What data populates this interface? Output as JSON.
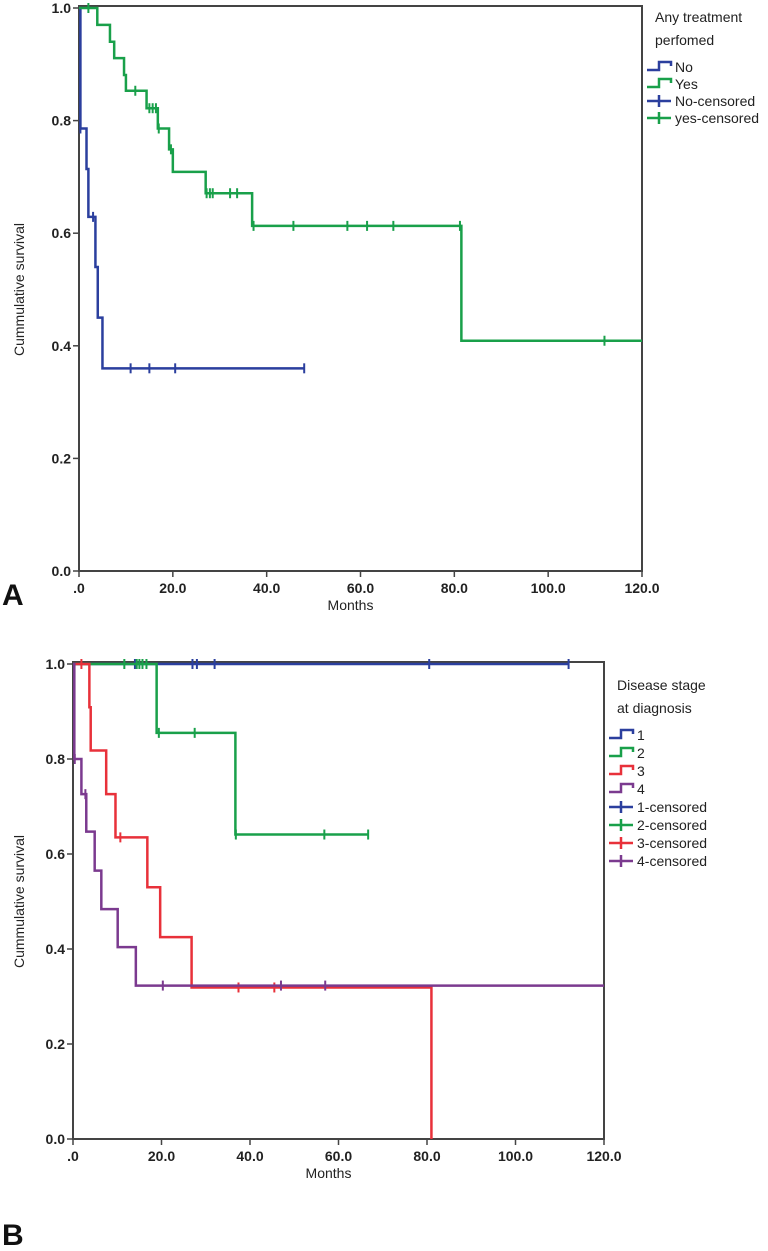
{
  "chart_data": [
    {
      "type": "line",
      "subtype": "kaplan-meier",
      "panel_label": "A",
      "xlabel": "Months",
      "ylabel": "Cummulative survival",
      "xlim": [
        0,
        120
      ],
      "ylim": [
        0,
        1
      ],
      "xticks": [
        ".0",
        "20.0",
        "40.0",
        "60.0",
        "80.0",
        "100.0",
        "120.0"
      ],
      "yticks": [
        "0.0",
        "0.2",
        "0.4",
        "0.6",
        "0.8",
        "1.0"
      ],
      "grid": false,
      "legend_placement": "right",
      "legend_title": [
        "Any treatment",
        "perfomed"
      ],
      "legend": [
        "No",
        "Yes",
        "No-censored",
        "yes-censored"
      ],
      "series": [
        {
          "name": "No",
          "color": "#2b3f9e",
          "steps": [
            [
              0,
              1.0
            ],
            [
              0.3,
              0.786
            ],
            [
              1.6,
              0.714
            ],
            [
              2.0,
              0.629
            ],
            [
              3.5,
              0.54
            ],
            [
              4.0,
              0.45
            ],
            [
              5.0,
              0.36
            ]
          ],
          "end": 48,
          "censored": [
            [
              0.3,
              0.786
            ],
            [
              3,
              0.629
            ],
            [
              11,
              0.36
            ],
            [
              15,
              0.36
            ],
            [
              20.5,
              0.36
            ],
            [
              48,
              0.36
            ]
          ]
        },
        {
          "name": "Yes",
          "color": "#19a04a",
          "steps": [
            [
              0,
              1.0
            ],
            [
              3.9,
              0.97
            ],
            [
              6.6,
              0.94
            ],
            [
              7.5,
              0.911
            ],
            [
              9.6,
              0.881
            ],
            [
              10,
              0.853
            ],
            [
              14.4,
              0.822
            ],
            [
              16.8,
              0.786
            ],
            [
              19.2,
              0.749
            ],
            [
              20,
              0.709
            ],
            [
              27,
              0.671
            ],
            [
              36.9,
              0.613
            ],
            [
              81.5,
              0.409
            ]
          ],
          "end": 120,
          "censored": [
            [
              2,
              1.0
            ],
            [
              12,
              0.853
            ],
            [
              15,
              0.822
            ],
            [
              15.7,
              0.822
            ],
            [
              16.4,
              0.822
            ],
            [
              17,
              0.786
            ],
            [
              19.6,
              0.749
            ],
            [
              27.2,
              0.671
            ],
            [
              27.9,
              0.671
            ],
            [
              28.5,
              0.671
            ],
            [
              32.2,
              0.671
            ],
            [
              33.7,
              0.671
            ],
            [
              37.2,
              0.613
            ],
            [
              45.7,
              0.613
            ],
            [
              57.2,
              0.613
            ],
            [
              61.4,
              0.613
            ],
            [
              67,
              0.613
            ],
            [
              81.2,
              0.613
            ],
            [
              112,
              0.409
            ]
          ]
        }
      ]
    },
    {
      "type": "line",
      "subtype": "kaplan-meier",
      "panel_label": "B",
      "xlabel": "Months",
      "ylabel": "Cummulative survival",
      "xlim": [
        0,
        120
      ],
      "ylim": [
        0,
        1
      ],
      "xticks": [
        ".0",
        "20.0",
        "40.0",
        "60.0",
        "80.0",
        "100.0",
        "120.0"
      ],
      "yticks": [
        "0.0",
        "0.2",
        "0.4",
        "0.6",
        "0.8",
        "1.0"
      ],
      "grid": false,
      "legend_placement": "right",
      "legend_title": [
        "Disease stage",
        "at diagnosis"
      ],
      "legend": [
        "1",
        "2",
        "3",
        "4",
        "1-censored",
        "2-censored",
        "3-censored",
        "4-censored"
      ],
      "series": [
        {
          "name": "1",
          "color": "#2b3f9e",
          "steps": [
            [
              0,
              1.0
            ]
          ],
          "end": 112,
          "censored": [
            [
              14,
              1.0
            ],
            [
              27,
              1.0
            ],
            [
              28,
              1.0
            ],
            [
              32,
              1.0
            ],
            [
              80.5,
              1.0
            ],
            [
              112,
              1.0
            ]
          ]
        },
        {
          "name": "2",
          "color": "#19a04a",
          "steps": [
            [
              0,
              1.0
            ],
            [
              18.9,
              0.855
            ],
            [
              36.7,
              0.641
            ]
          ],
          "end": 66.7,
          "censored": [
            [
              11.6,
              1.0
            ],
            [
              14.4,
              1.0
            ],
            [
              15,
              1.0
            ],
            [
              15.7,
              1.0
            ],
            [
              16.6,
              1.0
            ],
            [
              19.4,
              0.855
            ],
            [
              27.5,
              0.855
            ],
            [
              36.8,
              0.641
            ],
            [
              56.8,
              0.641
            ],
            [
              66.7,
              0.641
            ]
          ]
        },
        {
          "name": "3",
          "color": "#e8313a",
          "steps": [
            [
              0,
              1.0
            ],
            [
              3.7,
              0.909
            ],
            [
              4.0,
              0.818
            ],
            [
              7.5,
              0.726
            ],
            [
              9.6,
              0.635
            ],
            [
              16.8,
              0.53
            ],
            [
              19.7,
              0.425
            ],
            [
              26.8,
              0.319
            ],
            [
              81,
              0.0
            ]
          ],
          "end": 81,
          "censored": [
            [
              1.9,
              1.0
            ],
            [
              10.7,
              0.635
            ],
            [
              37.4,
              0.319
            ],
            [
              45.5,
              0.319
            ]
          ]
        },
        {
          "name": "4",
          "color": "#7b3a8f",
          "steps": [
            [
              0,
              1.0
            ],
            [
              0.3,
              0.8
            ],
            [
              1.9,
              0.726
            ],
            [
              3.0,
              0.647
            ],
            [
              4.9,
              0.565
            ],
            [
              6.4,
              0.484
            ],
            [
              10.1,
              0.404
            ],
            [
              14.2,
              0.323
            ]
          ],
          "end": 120,
          "censored": [
            [
              0.4,
              0.8
            ],
            [
              2.8,
              0.726
            ],
            [
              20.3,
              0.323
            ],
            [
              47,
              0.323
            ],
            [
              57,
              0.323
            ]
          ]
        }
      ]
    }
  ]
}
